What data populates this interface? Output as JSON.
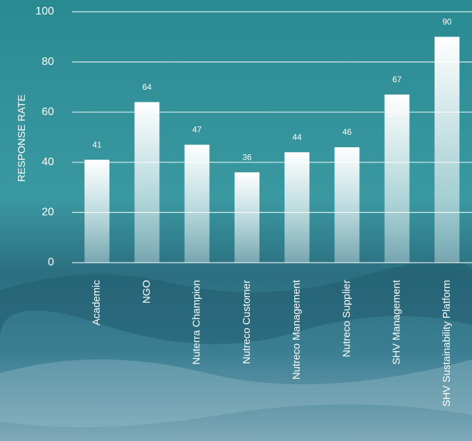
{
  "chart_data": {
    "type": "bar",
    "y_label": "RESPONSE RATE",
    "categories": [
      "Academic",
      "NGO",
      "Nuterra Champion",
      "Nutreco Customer",
      "Nutreco Management",
      "Nutreco Supplier",
      "SHV Management",
      "SHV Sustainability Platform"
    ],
    "values": [
      41,
      64,
      47,
      36,
      44,
      46,
      67,
      90
    ],
    "color": "#ffffff",
    "ylim": [
      0,
      100
    ],
    "yticks": [
      0,
      20,
      40,
      60,
      80,
      100
    ],
    "grid": true
  }
}
